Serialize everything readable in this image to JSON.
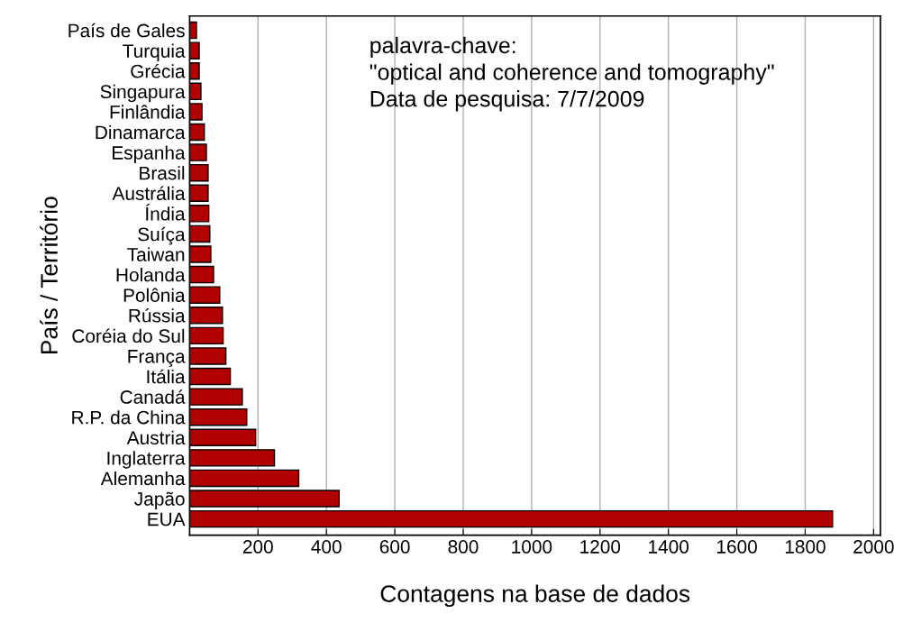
{
  "chart_data": {
    "type": "bar",
    "orientation": "horizontal",
    "xlabel": "Contagens na base de dados",
    "ylabel": "País / Território",
    "categories": [
      "País de Gales",
      "Turquia",
      "Grécia",
      "Singapura",
      "Finlândia",
      "Dinamarca",
      "Espanha",
      "Brasil",
      "Austrália",
      "Índia",
      "Suíça",
      "Taiwan",
      "Holanda",
      "Polônia",
      "Rússia",
      "Coréia do Sul",
      "França",
      "Itália",
      "Canadá",
      "R.P. da China",
      "Austria",
      "Inglaterra",
      "Alemanha",
      "Japão",
      "EUA"
    ],
    "values": [
      20,
      28,
      28,
      33,
      36,
      43,
      49,
      54,
      54,
      56,
      59,
      62,
      70,
      88,
      96,
      98,
      106,
      119,
      154,
      167,
      193,
      248,
      319,
      437,
      1880
    ],
    "color": "#b00000",
    "xlim": [
      0,
      2020
    ],
    "xticks": [
      200,
      400,
      600,
      800,
      1000,
      1200,
      1400,
      1600,
      1800,
      2000
    ],
    "grid": "x",
    "annotations": [
      "palavra-chave:\n\"optical and coherence and tomography\"\nData de pesquisa: 7/7/2009"
    ]
  }
}
